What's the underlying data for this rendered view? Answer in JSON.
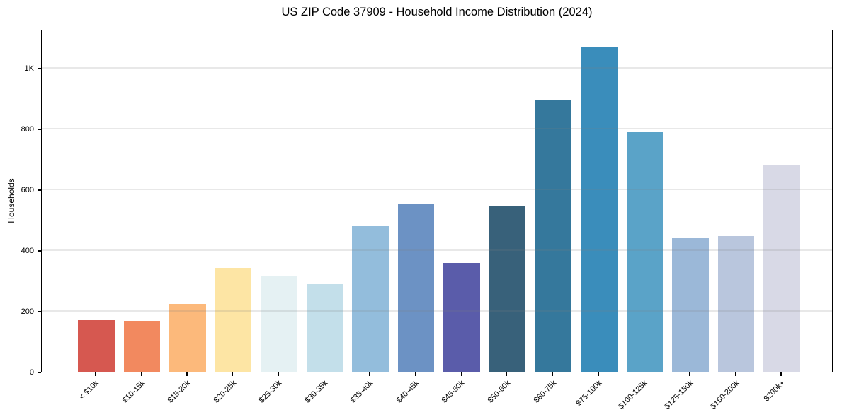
{
  "chart_data": {
    "type": "bar",
    "title": "US ZIP Code 37909 - Household Income Distribution (2024)",
    "ylabel": "Households",
    "xlabel": "",
    "categories": [
      "< $10k",
      "$10-15k",
      "$15-20k",
      "$20-25k",
      "$25-30k",
      "$30-35k",
      "$35-40k",
      "$40-45k",
      "$45-50k",
      "$50-60k",
      "$60-75k",
      "$75-100k",
      "$100-125k",
      "$125-150k",
      "$150-200k",
      "$200k+"
    ],
    "values": [
      170,
      168,
      224,
      341,
      316,
      289,
      480,
      552,
      358,
      544,
      895,
      1068,
      789,
      440,
      447,
      680
    ],
    "bar_colors": [
      "#d65850",
      "#f2895f",
      "#fcb97b",
      "#fde5a4",
      "#e5f1f3",
      "#c3dfea",
      "#93bddc",
      "#6c92c4",
      "#5a5caa",
      "#38617a",
      "#35789c",
      "#3a8dbb",
      "#5aa3c8",
      "#9bb8d8",
      "#b9c6dd",
      "#d8d9e6"
    ],
    "ylim": [
      0,
      1128
    ],
    "xlim": [
      -1.19,
      16.13
    ],
    "bar_width": 0.8,
    "yticks": [
      {
        "value": 0,
        "label": "0"
      },
      {
        "value": 200,
        "label": "200"
      },
      {
        "value": 400,
        "label": "400"
      },
      {
        "value": 600,
        "label": "600"
      },
      {
        "value": 800,
        "label": "800"
      },
      {
        "value": 1000,
        "label": "1K"
      }
    ],
    "grid": "horizontal",
    "legend": "none",
    "background_color": "#ffffff",
    "spine_color": "#000000",
    "gridline_color": "#ebebeb"
  }
}
